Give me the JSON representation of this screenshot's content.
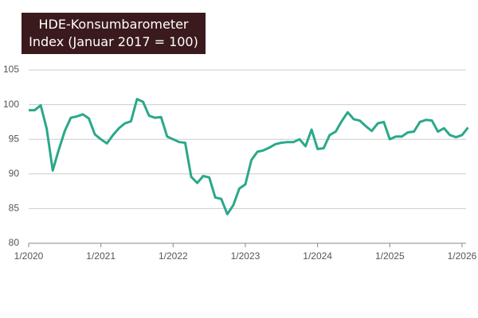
{
  "chart_data": {
    "type": "line",
    "title": "HDE-Konsumbarometer",
    "subtitle": "Index (Januar 2017 = 100)",
    "x": [
      "1/2020",
      "2/2020",
      "3/2020",
      "4/2020",
      "5/2020",
      "6/2020",
      "7/2020",
      "8/2020",
      "9/2020",
      "10/2020",
      "11/2020",
      "12/2020",
      "1/2021",
      "2/2021",
      "3/2021",
      "4/2021",
      "5/2021",
      "6/2021",
      "7/2021",
      "8/2021",
      "9/2021",
      "10/2021",
      "11/2021",
      "12/2021",
      "1/2022",
      "2/2022",
      "3/2022",
      "4/2022",
      "5/2022",
      "6/2022",
      "7/2022",
      "8/2022",
      "9/2022",
      "10/2022",
      "11/2022",
      "12/2022",
      "1/2023",
      "2/2023",
      "3/2023",
      "4/2023",
      "5/2023",
      "6/2023",
      "7/2023",
      "8/2023",
      "9/2023",
      "10/2023",
      "11/2023",
      "12/2023",
      "1/2024",
      "2/2024",
      "3/2024",
      "4/2024",
      "5/2024",
      "6/2024",
      "7/2024",
      "8/2024",
      "9/2024",
      "10/2024",
      "11/2024",
      "12/2024",
      "1/2025",
      "2/2025",
      "3/2025",
      "4/2025",
      "5/2025",
      "6/2025",
      "7/2025",
      "8/2025",
      "9/2025",
      "10/2025",
      "11/2025",
      "12/2025",
      "1/2026",
      "2/2026"
    ],
    "series": [
      {
        "name": "HDE-Konsumbarometer",
        "color": "#2aa88a",
        "values": [
          99.2,
          99.2,
          99.9,
          96.5,
          90.5,
          93.5,
          96.2,
          98.1,
          98.3,
          98.6,
          98.0,
          95.7,
          95.0,
          94.4,
          95.6,
          96.6,
          97.3,
          97.6,
          100.8,
          100.4,
          98.4,
          98.1,
          98.2,
          95.4,
          95.0,
          94.6,
          94.5,
          89.6,
          88.7,
          89.7,
          89.5,
          86.6,
          86.4,
          84.2,
          85.5,
          87.9,
          88.5,
          92.0,
          93.2,
          93.4,
          93.8,
          94.3,
          94.5,
          94.6,
          94.6,
          95.0,
          94.0,
          96.4,
          93.6,
          93.7,
          95.6,
          96.1,
          97.6,
          98.9,
          97.9,
          97.7,
          96.9,
          96.2,
          97.3,
          97.5,
          95.0,
          95.4,
          95.4,
          96.0,
          96.1,
          97.5,
          97.8,
          97.7,
          96.1,
          96.6,
          95.6,
          95.3,
          95.6,
          96.7
        ]
      }
    ],
    "xticks": [
      "1/2020",
      "1/2021",
      "1/2022",
      "1/2023",
      "1/2024",
      "1/2025",
      "1/2026"
    ],
    "ylim": [
      80,
      105
    ],
    "yticks": [
      80,
      85,
      90,
      95,
      100,
      105
    ],
    "grid": true
  }
}
